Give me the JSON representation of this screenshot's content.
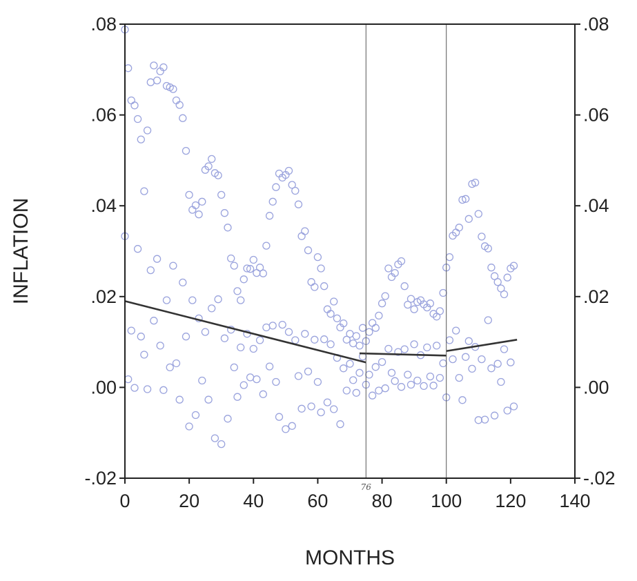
{
  "chart_data": {
    "type": "scatter",
    "xlabel": "MONTHS",
    "ylabel": "INFLATION",
    "xlim": [
      0,
      140
    ],
    "ylim": [
      -0.02,
      0.08
    ],
    "x_ticks": [
      0,
      20,
      40,
      60,
      80,
      100,
      120,
      140
    ],
    "x_tick_labels": [
      "0",
      "20",
      "40",
      "60",
      "80",
      "100",
      "120",
      "140"
    ],
    "y_ticks": [
      -0.02,
      0.0,
      0.02,
      0.04,
      0.06,
      0.08
    ],
    "y_tick_labels": [
      "-.02",
      ".00",
      ".02",
      ".04",
      ".06",
      ".08"
    ],
    "grid": false,
    "vertical_lines": [
      75,
      100
    ],
    "annotation": "76",
    "annotation_x": 75,
    "point_color": "#9aa3dd",
    "line_color": "#333333",
    "trend_segments": [
      {
        "x": [
          0,
          75
        ],
        "y": [
          0.019,
          0.0055
        ]
      },
      {
        "x": [
          73,
          100
        ],
        "y": [
          0.0075,
          0.007
        ]
      },
      {
        "x": [
          100,
          122
        ],
        "y": [
          0.008,
          0.0105
        ]
      }
    ],
    "series": [
      {
        "x": [
          0,
          0,
          1,
          1,
          2,
          2,
          3,
          3,
          4,
          4,
          5,
          5,
          6,
          6,
          7,
          7,
          8,
          8,
          9,
          9,
          10,
          10,
          11,
          11,
          12,
          12,
          13,
          13,
          14,
          14,
          15,
          15,
          16,
          16,
          17,
          17,
          18,
          18,
          19,
          19,
          20,
          20,
          21,
          21,
          22,
          22,
          23,
          23,
          24,
          24,
          25,
          25,
          26,
          26,
          27,
          27,
          28,
          28,
          29,
          29,
          30,
          30,
          31,
          31,
          32,
          32,
          33,
          33,
          34,
          34,
          35,
          35,
          36,
          36,
          37,
          37,
          38,
          38,
          39,
          39,
          40,
          40,
          41,
          41,
          42,
          42,
          43,
          43,
          44,
          44,
          45,
          45,
          46,
          46,
          47,
          47,
          48,
          48,
          49,
          49,
          50,
          50,
          51,
          51,
          52,
          52,
          53,
          53,
          54,
          54,
          55,
          55,
          56,
          56,
          57,
          57,
          58,
          58,
          59,
          59,
          60,
          60,
          61,
          61,
          62,
          62,
          63,
          63,
          64,
          64,
          65,
          65,
          66,
          66,
          67,
          67,
          68,
          68,
          69,
          69,
          70,
          70,
          71,
          71,
          72,
          72,
          73,
          73,
          74,
          74,
          75,
          75,
          76,
          76,
          77,
          77,
          78,
          78,
          79,
          79,
          80,
          80,
          81,
          81,
          82,
          82,
          83,
          83,
          84,
          84,
          85,
          85,
          86,
          86,
          87,
          87,
          88,
          88,
          89,
          89,
          90,
          90,
          91,
          91,
          92,
          92,
          93,
          93,
          94,
          94,
          95,
          95,
          96,
          96,
          97,
          97,
          98,
          98,
          99,
          99,
          100,
          100,
          101,
          101,
          102,
          102,
          103,
          103,
          104,
          104,
          105,
          105,
          106,
          106,
          107,
          107,
          108,
          108,
          109,
          109,
          110,
          110,
          111,
          111,
          112,
          112,
          113,
          113,
          114,
          114,
          115,
          115,
          116,
          116,
          117,
          117,
          118,
          118,
          119,
          119,
          120,
          120,
          121,
          121
        ],
        "y": [
          0.0788,
          0.0333,
          0.0703,
          0.0018,
          0.0632,
          0.0125,
          0.0621,
          -0.0001,
          0.0591,
          0.0305,
          0.0546,
          0.0112,
          0.0432,
          0.0072,
          0.0566,
          -0.0004,
          0.0672,
          0.0258,
          0.0709,
          0.0147,
          0.0676,
          0.0283,
          0.0696,
          0.0092,
          0.0705,
          -0.0006,
          0.0664,
          0.0192,
          0.0661,
          0.0044,
          0.0657,
          0.0268,
          0.0632,
          0.0053,
          0.0622,
          -0.0027,
          0.0593,
          0.0231,
          0.0521,
          0.0112,
          0.0424,
          -0.0086,
          0.0391,
          0.0192,
          0.0401,
          -0.0061,
          0.0381,
          0.0152,
          0.0409,
          0.0015,
          0.0479,
          0.0122,
          0.0487,
          -0.0027,
          0.0503,
          0.0174,
          0.0472,
          -0.0112,
          0.0467,
          0.0194,
          0.0424,
          -0.0125,
          0.0384,
          0.0108,
          0.0352,
          -0.0069,
          0.0284,
          0.0127,
          0.0268,
          0.0044,
          0.0212,
          -0.0021,
          0.0192,
          0.0088,
          0.0238,
          0.0005,
          0.0262,
          0.0118,
          0.0261,
          0.0022,
          0.0281,
          0.0085,
          0.0252,
          0.0018,
          0.0264,
          0.0104,
          0.0251,
          -0.0015,
          0.0312,
          0.0132,
          0.0378,
          0.0046,
          0.0409,
          0.0136,
          0.0441,
          0.0012,
          0.0471,
          -0.0065,
          0.0462,
          0.0138,
          0.0468,
          -0.0092,
          0.0477,
          0.0122,
          0.0446,
          -0.0085,
          0.0433,
          0.0104,
          0.0403,
          0.0025,
          0.0333,
          -0.0047,
          0.0344,
          0.0118,
          0.0302,
          0.0035,
          0.0232,
          -0.0042,
          0.0221,
          0.0105,
          0.0287,
          0.0012,
          0.0262,
          -0.0055,
          0.0223,
          0.0106,
          0.0172,
          -0.0033,
          0.0162,
          0.0095,
          0.0189,
          -0.0048,
          0.0152,
          0.0065,
          0.0132,
          -0.0081,
          0.0141,
          0.0042,
          0.0105,
          -0.0007,
          0.0118,
          0.0052,
          0.0097,
          0.0016,
          0.0113,
          -0.0012,
          0.0092,
          0.0032,
          0.0131,
          0.0068,
          0.0102,
          0.0006,
          0.0122,
          0.0028,
          0.0142,
          -0.0018,
          0.0131,
          0.0045,
          0.0158,
          -0.0007,
          0.0185,
          0.0056,
          0.0201,
          -0.0002,
          0.0262,
          0.0085,
          0.0243,
          0.0032,
          0.0252,
          0.0014,
          0.0271,
          0.0078,
          0.0278,
          0.0001,
          0.0223,
          0.0084,
          0.0182,
          0.0028,
          0.0195,
          0.0006,
          0.0172,
          0.0095,
          0.0188,
          0.0015,
          0.0192,
          0.0071,
          0.0183,
          0.0003,
          0.0176,
          0.0088,
          0.0185,
          0.0024,
          0.0162,
          0.0004,
          0.0156,
          0.0092,
          0.0168,
          0.0021,
          0.0208,
          0.0053,
          0.0264,
          -0.0022,
          0.0287,
          0.0104,
          0.0334,
          0.0062,
          0.0341,
          0.0125,
          0.0352,
          0.0021,
          0.0413,
          -0.0028,
          0.0415,
          0.0067,
          0.0371,
          0.0102,
          0.0448,
          0.0041,
          0.0451,
          0.0089,
          0.0382,
          -0.0072,
          0.0332,
          0.0062,
          0.0311,
          -0.0071,
          0.0306,
          0.0148,
          0.0264,
          0.0042,
          0.0245,
          -0.0062,
          0.0232,
          0.0052,
          0.0218,
          0.0012,
          0.0205,
          0.0084,
          0.0242,
          -0.0051,
          0.0262,
          0.0055,
          0.0268,
          -0.0042
        ]
      }
    ]
  }
}
